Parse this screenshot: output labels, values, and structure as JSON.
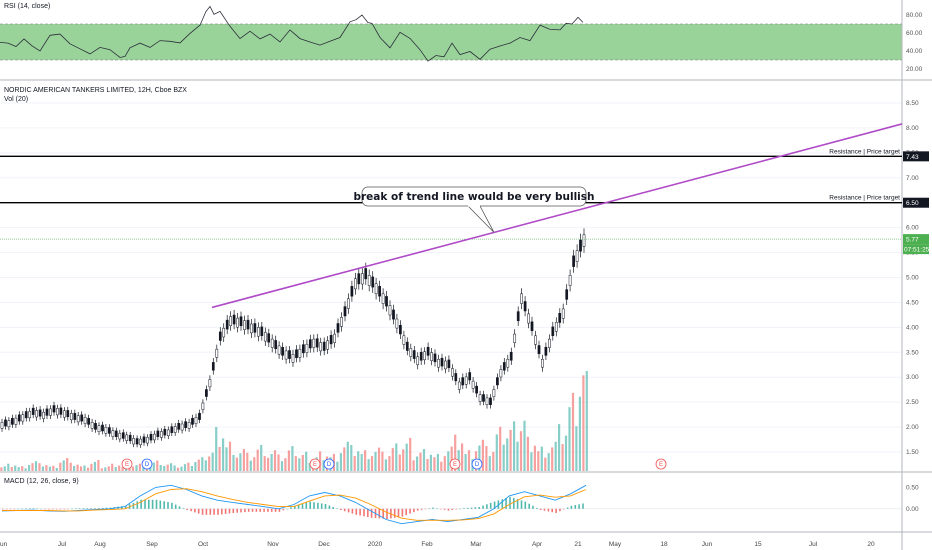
{
  "panes": {
    "rsi_title": "RSI (14, close)",
    "main_title": "NORDIC AMERICAN TANKERS LIMITED, 12H, Cboe BZX",
    "vol_title": "Vol (20)",
    "macd_title": "MACD (12, 26, close, 9)"
  },
  "colors": {
    "up": "#26a69a",
    "down": "#ef5350",
    "body_up": "#ffffff",
    "wick": "#131722",
    "trendline": "#b04bc8",
    "rsi_band": "#8fce8f",
    "macd_line": "#2196f3",
    "signal_line": "#ff9800",
    "price_tag": "#4caf50",
    "level_tag": "#131722"
  },
  "chart_data": [
    {
      "type": "line",
      "name": "rsi",
      "title": "RSI (14, close)",
      "y_ticks": [
        "80.00",
        "60.00",
        "40.00",
        "20.00"
      ],
      "band": [
        30,
        70
      ],
      "x": [
        0,
        8,
        16,
        24,
        32,
        40,
        50,
        60,
        70,
        80,
        90,
        100,
        110,
        120,
        125,
        130,
        140,
        150,
        160,
        170,
        180,
        190,
        200,
        206,
        210,
        214,
        220,
        230,
        240,
        250,
        260,
        270,
        280,
        290,
        300,
        310,
        320,
        330,
        340,
        350,
        356,
        362,
        368,
        372,
        380,
        390,
        400,
        410,
        420,
        428,
        436,
        444,
        452,
        460,
        470,
        480,
        490,
        500,
        510,
        520,
        530,
        540,
        550,
        560,
        566,
        572,
        578,
        583
      ],
      "values": [
        48,
        50,
        45,
        52,
        47,
        40,
        56,
        60,
        48,
        41,
        38,
        44,
        40,
        34,
        34,
        42,
        50,
        44,
        50,
        52,
        49,
        58,
        70,
        84,
        88,
        82,
        84,
        66,
        55,
        62,
        52,
        60,
        50,
        62,
        55,
        50,
        45,
        52,
        55,
        71,
        76,
        80,
        70,
        72,
        55,
        42,
        62,
        54,
        40,
        30,
        35,
        32,
        50,
        36,
        38,
        32,
        42,
        44,
        50,
        55,
        50,
        70,
        64,
        62,
        72,
        70,
        76,
        73
      ]
    },
    {
      "type": "candlestick",
      "name": "price",
      "title": "NORDIC AMERICAN TANKERS LIMITED, 12H, Cboe BZX",
      "x_ticks": [
        "Jun",
        "Jul",
        "Aug",
        "Sep",
        "Oct",
        "Nov",
        "Dec",
        "2020",
        "Feb",
        "Mar",
        "Apr",
        "21",
        "May",
        "18",
        "Jun",
        "15",
        "Jul",
        "20"
      ],
      "y_ticks": [
        "8.50",
        "8.00",
        "7.50",
        "7.00",
        "6.50",
        "6.00",
        "5.50",
        "5.00",
        "4.50",
        "4.00",
        "3.50",
        "3.00",
        "2.50",
        "2.00",
        "1.50"
      ],
      "ylim": [
        1.5,
        8.5
      ],
      "close_path": [
        2.05,
        2.1,
        2.2,
        2.3,
        2.25,
        2.35,
        2.28,
        2.2,
        2.15,
        2.0,
        1.95,
        1.85,
        1.8,
        1.7,
        1.75,
        1.85,
        1.9,
        2.0,
        2.05,
        2.2,
        2.9,
        3.8,
        4.15,
        4.1,
        4.0,
        3.9,
        3.7,
        3.5,
        3.4,
        3.55,
        3.7,
        3.6,
        3.8,
        4.3,
        4.9,
        5.05,
        4.8,
        4.5,
        4.1,
        3.6,
        3.35,
        3.5,
        3.3,
        3.25,
        2.85,
        3.0,
        2.6,
        2.5,
        3.1,
        3.4,
        4.6,
        4.0,
        3.3,
        3.9,
        4.3,
        5.3,
        5.77
      ],
      "last_price": "5.77",
      "countdown": "07:51:25",
      "horizontal_levels": [
        {
          "value": 7.43,
          "tag": "7.43",
          "label": "Resistance | Price target"
        },
        {
          "value": 6.5,
          "tag": "6.50",
          "label": "Resistance | Price target"
        }
      ],
      "trendline": {
        "from": [
          "Oct",
          4.4
        ],
        "to": [
          "Jul +",
          8.05
        ]
      },
      "annotation": "break of trend line would be very bullish",
      "event_markers": [
        "E",
        "D",
        "E",
        "D",
        "E",
        "D",
        "E"
      ]
    },
    {
      "type": "bar",
      "name": "volume",
      "title": "Vol (20)",
      "values": [
        2,
        3,
        2,
        4,
        3,
        2,
        5,
        3,
        2,
        4,
        2,
        3,
        2,
        3,
        2,
        4,
        3,
        2,
        3,
        5,
        8,
        18,
        12,
        9,
        7,
        10,
        8,
        6,
        9,
        7,
        6,
        8,
        7,
        12,
        10,
        8,
        9,
        7,
        10,
        12,
        8,
        9,
        7,
        10,
        14,
        8,
        12,
        9,
        16,
        18,
        22,
        14,
        10,
        12,
        18,
        30,
        45
      ]
    },
    {
      "type": "line",
      "name": "macd",
      "title": "MACD (12, 26, close, 9)",
      "y_ticks": [
        "0.50",
        "0.00"
      ],
      "macd_series": [
        -0.05,
        -0.04,
        -0.03,
        -0.05,
        -0.06,
        -0.04,
        -0.02,
        0.0,
        0.05,
        0.3,
        0.5,
        0.55,
        0.45,
        0.3,
        0.2,
        0.15,
        0.1,
        0.05,
        0.0,
        0.1,
        0.3,
        0.38,
        0.3,
        0.15,
        -0.05,
        -0.25,
        -0.35,
        -0.3,
        -0.25,
        -0.3,
        -0.25,
        -0.2,
        0.0,
        0.3,
        0.4,
        0.3,
        0.2,
        0.35,
        0.55
      ],
      "signal_series": [
        -0.04,
        -0.04,
        -0.04,
        -0.04,
        -0.05,
        -0.05,
        -0.03,
        -0.02,
        0.0,
        0.15,
        0.35,
        0.45,
        0.47,
        0.4,
        0.3,
        0.22,
        0.15,
        0.1,
        0.05,
        0.05,
        0.18,
        0.3,
        0.32,
        0.25,
        0.1,
        -0.08,
        -0.22,
        -0.27,
        -0.27,
        -0.27,
        -0.26,
        -0.23,
        -0.12,
        0.1,
        0.28,
        0.32,
        0.27,
        0.3,
        0.45
      ]
    }
  ]
}
